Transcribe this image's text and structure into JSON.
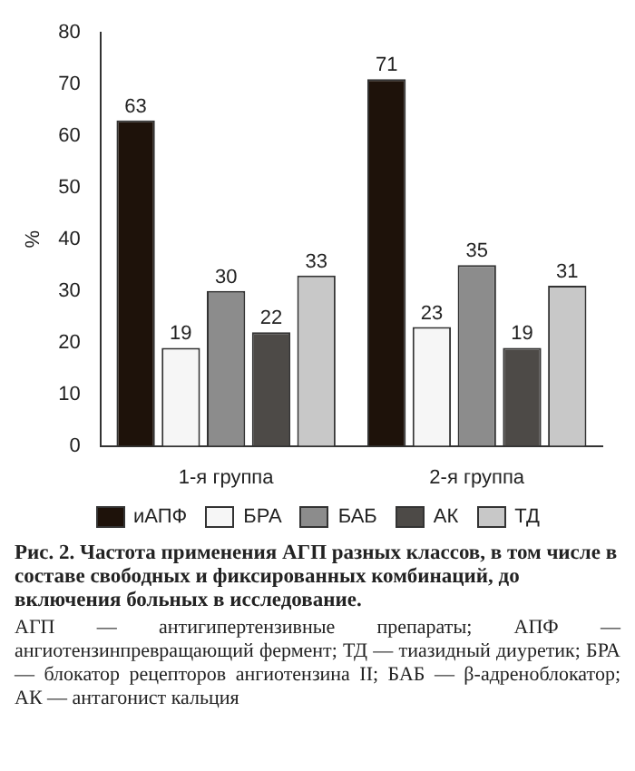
{
  "chart_data": {
    "type": "bar",
    "title": "Рис. 2. Частота применения АГП разных классов, в том числе в составе свободных и фиксированных комбинаций, до включения больных в исследование.",
    "ylabel": "%",
    "categories": [
      "1-я группа",
      "2-я группа"
    ],
    "series": [
      {
        "name": "иАПФ",
        "color": "#1e120a",
        "values": [
          63,
          71
        ]
      },
      {
        "name": "БРА",
        "color": "#f6f6f6",
        "values": [
          19,
          23
        ]
      },
      {
        "name": "БАБ",
        "color": "#8c8c8c",
        "values": [
          30,
          35
        ]
      },
      {
        "name": "АК",
        "color": "#4d4a47",
        "values": [
          22,
          19
        ]
      },
      {
        "name": "ТД",
        "color": "#c8c8c8",
        "values": [
          33,
          31
        ]
      }
    ],
    "ylim": [
      0,
      80
    ],
    "yticks": [
      0,
      10,
      20,
      30,
      40,
      50,
      60,
      70,
      80
    ],
    "grid": false,
    "legend": "bottom",
    "data_labels": true,
    "annotations": [
      "АГП — антигипертензивные препараты; АПФ — ангиотензинпревращающий фермент; ТД — тиазидный диуретик; БРА — блокатор рецепторов ангиотензина II; БАБ — β-адреноблокатор; АК — антагонист кальция"
    ]
  }
}
